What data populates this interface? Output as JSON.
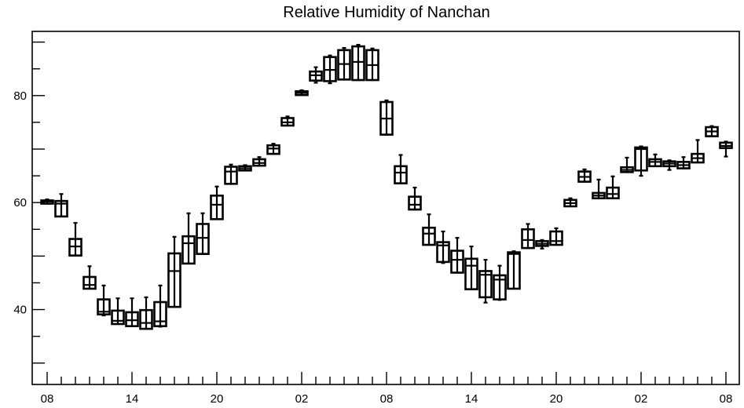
{
  "chart_data": {
    "type": "boxplot",
    "title": "Relative Humidity of Nanchan",
    "xlabel": "",
    "ylabel": "",
    "ylim": [
      26,
      92
    ],
    "y_ticks": [
      40,
      60,
      80
    ],
    "x_tick_labels": [
      "08",
      "14",
      "20",
      "02",
      "08",
      "14",
      "20",
      "02",
      "08"
    ],
    "x_tick_hours": [
      0,
      6,
      12,
      18,
      24,
      30,
      36,
      42,
      48
    ],
    "grid": false,
    "legend": "none",
    "boxes": [
      {
        "h": 0,
        "low": 59.8,
        "q1": 59.8,
        "median": 60.2,
        "q3": 60.4,
        "high": 60.6
      },
      {
        "h": 1,
        "low": 57.4,
        "q1": 57.4,
        "median": 59.8,
        "q3": 60.3,
        "high": 61.6
      },
      {
        "h": 2,
        "low": 50.1,
        "q1": 50.1,
        "median": 51.8,
        "q3": 53.2,
        "high": 56.2
      },
      {
        "h": 3,
        "low": 43.9,
        "q1": 43.9,
        "median": 44.6,
        "q3": 46.1,
        "high": 48.1
      },
      {
        "h": 4,
        "low": 38.9,
        "q1": 39.1,
        "median": 39.6,
        "q3": 41.9,
        "high": 44.5
      },
      {
        "h": 5,
        "low": 37.3,
        "q1": 37.3,
        "median": 37.9,
        "q3": 39.8,
        "high": 42.1
      },
      {
        "h": 6,
        "low": 36.9,
        "q1": 36.9,
        "median": 38.0,
        "q3": 39.5,
        "high": 42.1
      },
      {
        "h": 7,
        "low": 36.4,
        "q1": 36.4,
        "median": 37.5,
        "q3": 39.9,
        "high": 42.3
      },
      {
        "h": 8,
        "low": 36.8,
        "q1": 36.9,
        "median": 37.8,
        "q3": 41.4,
        "high": 44.5
      },
      {
        "h": 9,
        "low": 40.5,
        "q1": 40.5,
        "median": 47.2,
        "q3": 50.5,
        "high": 53.6
      },
      {
        "h": 10,
        "low": 48.6,
        "q1": 48.6,
        "median": 52.4,
        "q3": 53.7,
        "high": 58.0
      },
      {
        "h": 11,
        "low": 50.4,
        "q1": 50.4,
        "median": 53.4,
        "q3": 56.0,
        "high": 58.0
      },
      {
        "h": 12,
        "low": 56.9,
        "q1": 56.9,
        "median": 59.6,
        "q3": 61.3,
        "high": 63.0
      },
      {
        "h": 13,
        "low": 63.5,
        "q1": 63.5,
        "median": 65.8,
        "q3": 66.7,
        "high": 67.1
      },
      {
        "h": 14,
        "low": 66.0,
        "q1": 66.0,
        "median": 66.4,
        "q3": 66.8,
        "high": 67.0
      },
      {
        "h": 15,
        "low": 66.9,
        "q1": 66.9,
        "median": 67.4,
        "q3": 68.1,
        "high": 68.5
      },
      {
        "h": 16,
        "low": 69.1,
        "q1": 69.1,
        "median": 70.1,
        "q3": 70.7,
        "high": 71.0
      },
      {
        "h": 17,
        "low": 74.4,
        "q1": 74.4,
        "median": 75.0,
        "q3": 75.8,
        "high": 76.1
      },
      {
        "h": 18,
        "low": 80.1,
        "q1": 80.1,
        "median": 80.5,
        "q3": 80.8,
        "high": 81.0
      },
      {
        "h": 19,
        "low": 82.4,
        "q1": 82.8,
        "median": 83.8,
        "q3": 84.5,
        "high": 85.3
      },
      {
        "h": 20,
        "low": 82.3,
        "q1": 82.7,
        "median": 84.8,
        "q3": 87.2,
        "high": 87.5
      },
      {
        "h": 21,
        "low": 83.0,
        "q1": 83.0,
        "median": 85.9,
        "q3": 88.5,
        "high": 88.9
      },
      {
        "h": 22,
        "low": 82.9,
        "q1": 82.9,
        "median": 86.3,
        "q3": 89.2,
        "high": 89.5
      },
      {
        "h": 23,
        "low": 82.9,
        "q1": 82.9,
        "median": 85.7,
        "q3": 88.5,
        "high": 88.8
      },
      {
        "h": 24,
        "low": 72.7,
        "q1": 72.7,
        "median": 75.7,
        "q3": 78.8,
        "high": 79.1
      },
      {
        "h": 25,
        "low": 63.6,
        "q1": 63.6,
        "median": 65.6,
        "q3": 66.8,
        "high": 68.9
      },
      {
        "h": 26,
        "low": 58.7,
        "q1": 58.7,
        "median": 59.6,
        "q3": 61.1,
        "high": 62.8
      },
      {
        "h": 27,
        "low": 52.1,
        "q1": 52.1,
        "median": 54.2,
        "q3": 55.3,
        "high": 57.8
      },
      {
        "h": 28,
        "low": 48.7,
        "q1": 48.9,
        "median": 52.0,
        "q3": 52.6,
        "high": 54.6
      },
      {
        "h": 29,
        "low": 46.9,
        "q1": 46.9,
        "median": 49.3,
        "q3": 51.0,
        "high": 53.4
      },
      {
        "h": 30,
        "low": 43.8,
        "q1": 43.8,
        "median": 48.2,
        "q3": 49.5,
        "high": 51.8
      },
      {
        "h": 31,
        "low": 41.3,
        "q1": 42.3,
        "median": 46.5,
        "q3": 47.2,
        "high": 49.3
      },
      {
        "h": 32,
        "low": 41.8,
        "q1": 41.9,
        "median": 45.6,
        "q3": 46.4,
        "high": 48.2
      },
      {
        "h": 33,
        "low": 43.9,
        "q1": 43.9,
        "median": 50.4,
        "q3": 50.7,
        "high": 50.9
      },
      {
        "h": 34,
        "low": 51.5,
        "q1": 51.5,
        "median": 53.0,
        "q3": 55.0,
        "high": 56.0
      },
      {
        "h": 35,
        "low": 51.4,
        "q1": 51.9,
        "median": 52.3,
        "q3": 52.8,
        "high": 53.0
      },
      {
        "h": 36,
        "low": 52.1,
        "q1": 52.1,
        "median": 52.8,
        "q3": 54.6,
        "high": 55.2
      },
      {
        "h": 37,
        "low": 59.3,
        "q1": 59.3,
        "median": 59.9,
        "q3": 60.5,
        "high": 60.8
      },
      {
        "h": 38,
        "low": 63.9,
        "q1": 63.9,
        "median": 64.8,
        "q3": 65.8,
        "high": 66.2
      },
      {
        "h": 39,
        "low": 60.8,
        "q1": 60.8,
        "median": 61.3,
        "q3": 61.8,
        "high": 64.3
      },
      {
        "h": 40,
        "low": 60.8,
        "q1": 60.8,
        "median": 61.6,
        "q3": 62.8,
        "high": 64.9
      },
      {
        "h": 41,
        "low": 65.7,
        "q1": 65.7,
        "median": 66.1,
        "q3": 66.6,
        "high": 68.4
      },
      {
        "h": 42,
        "low": 65.0,
        "q1": 66.0,
        "median": 70.0,
        "q3": 70.3,
        "high": 70.5
      },
      {
        "h": 43,
        "low": 66.8,
        "q1": 66.8,
        "median": 67.6,
        "q3": 68.1,
        "high": 69.0
      },
      {
        "h": 44,
        "low": 66.1,
        "q1": 66.8,
        "median": 67.3,
        "q3": 67.7,
        "high": 67.9
      },
      {
        "h": 45,
        "low": 66.4,
        "q1": 66.4,
        "median": 67.0,
        "q3": 67.6,
        "high": 68.5
      },
      {
        "h": 46,
        "low": 67.5,
        "q1": 67.5,
        "median": 68.3,
        "q3": 69.1,
        "high": 71.7
      },
      {
        "h": 47,
        "low": 72.4,
        "q1": 72.4,
        "median": 73.3,
        "q3": 74.1,
        "high": 74.3
      },
      {
        "h": 48,
        "low": 68.6,
        "q1": 70.2,
        "median": 70.6,
        "q3": 71.2,
        "high": 71.4
      }
    ]
  }
}
